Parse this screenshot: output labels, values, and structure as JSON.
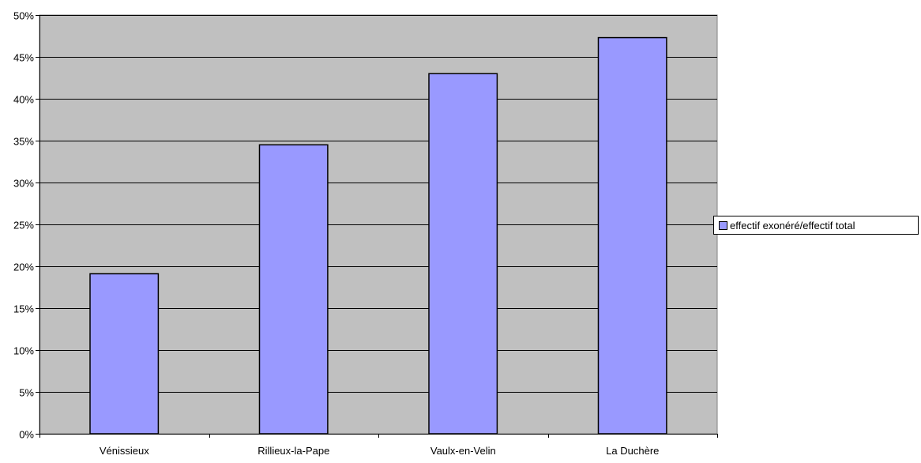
{
  "chart_data": {
    "type": "bar",
    "categories": [
      "Vénissieux",
      "Rillieux-la-Pape",
      "Vaulx-en-Velin",
      "La Duchère"
    ],
    "series": [
      {
        "name": "effectif exonéré/effectif total",
        "values": [
          0.191,
          0.345,
          0.43,
          0.473
        ]
      }
    ],
    "ylim": [
      0,
      0.5
    ],
    "y_ticks": [
      0,
      0.05,
      0.1,
      0.15,
      0.2,
      0.25,
      0.3,
      0.35,
      0.4,
      0.45,
      0.5
    ],
    "y_tick_labels": [
      "0%",
      "5%",
      "10%",
      "15%",
      "20%",
      "25%",
      "30%",
      "35%",
      "40%",
      "45%",
      "50%"
    ],
    "grid": true,
    "legend_position": "right",
    "colors": {
      "plot_background": "#c0c0c0",
      "bar_fill": "#9999ff",
      "bar_stroke": "#000000",
      "gridline": "#000000"
    }
  }
}
